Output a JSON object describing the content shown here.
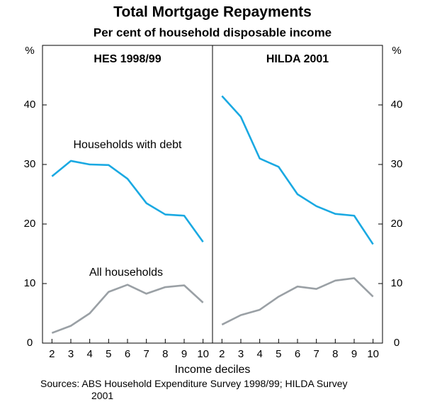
{
  "title": "Total Mortgage Repayments",
  "subtitle": "Per cent of household disposable income",
  "x_label": "Income deciles",
  "sources": "Sources: ABS Household Expenditure Survey 1998/99; HILDA Survey 2001",
  "chart_data": [
    {
      "type": "line",
      "title": "HES 1998/99",
      "y_label": "%",
      "y_axis_side": "left",
      "x": [
        2,
        3,
        4,
        5,
        6,
        7,
        8,
        9,
        10
      ],
      "xlim": [
        1.5,
        10.5
      ],
      "xticks": [
        2,
        3,
        4,
        5,
        6,
        7,
        8,
        9,
        10
      ],
      "ylim": [
        0,
        50
      ],
      "yticks": [
        0,
        10,
        20,
        30,
        40
      ],
      "series": [
        {
          "name": "Households with debt",
          "color": "#1aa9e2",
          "values": [
            28,
            30.6,
            30,
            29.9,
            27.6,
            23.5,
            21.6,
            21.4,
            17
          ]
        },
        {
          "name": "All households",
          "color": "#9aa0a5",
          "values": [
            1.7,
            2.9,
            5,
            8.6,
            9.8,
            8.3,
            9.4,
            9.7,
            6.8
          ]
        }
      ]
    },
    {
      "type": "line",
      "title": "HILDA 2001",
      "y_label": "%",
      "y_axis_side": "right",
      "x": [
        2,
        3,
        4,
        5,
        6,
        7,
        8,
        9,
        10
      ],
      "xlim": [
        1.5,
        10.5
      ],
      "xticks": [
        2,
        3,
        4,
        5,
        6,
        7,
        8,
        9,
        10
      ],
      "ylim": [
        0,
        50
      ],
      "yticks": [
        0,
        10,
        20,
        30,
        40
      ],
      "series": [
        {
          "color": "#1aa9e2",
          "values": [
            41.5,
            38,
            31,
            29.6,
            25,
            23,
            21.7,
            21.4,
            16.6
          ]
        },
        {
          "color": "#9aa0a5",
          "values": [
            3.1,
            4.7,
            5.6,
            7.8,
            9.5,
            9.1,
            10.5,
            10.9,
            7.8
          ]
        }
      ]
    }
  ]
}
